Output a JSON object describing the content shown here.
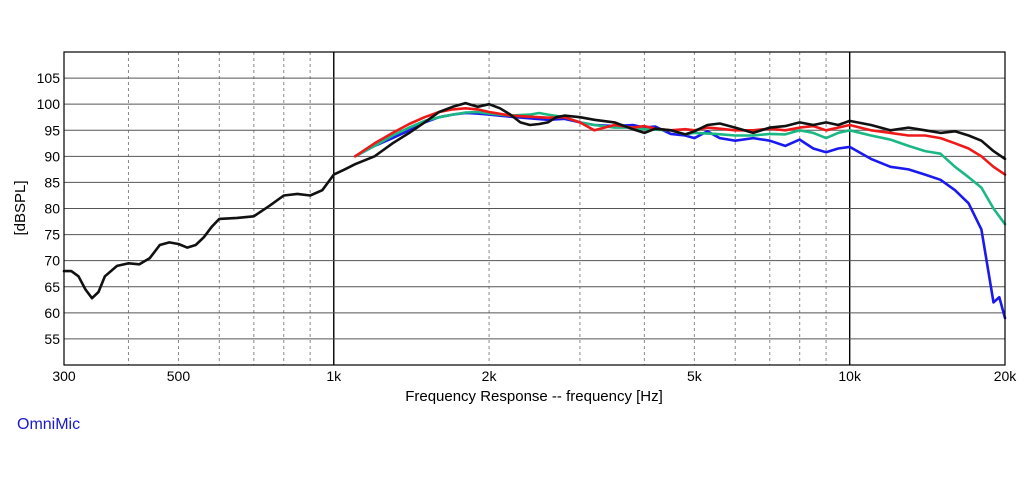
{
  "brand_label": "OmniMic",
  "chart_data": {
    "type": "line",
    "xlabel": "Frequency Response -- frequency [Hz]",
    "ylabel": "[dBSPL]",
    "x_scale": "log",
    "xlim": [
      300,
      20000
    ],
    "ylim": [
      50,
      110
    ],
    "x_ticks": [
      {
        "value": 300,
        "label": "300"
      },
      {
        "value": 500,
        "label": "500"
      },
      {
        "value": 1000,
        "label": "1k"
      },
      {
        "value": 2000,
        "label": "2k"
      },
      {
        "value": 5000,
        "label": "5k"
      },
      {
        "value": 10000,
        "label": "10k"
      },
      {
        "value": 20000,
        "label": "20k"
      }
    ],
    "y_ticks": [
      55,
      60,
      65,
      70,
      75,
      80,
      85,
      90,
      95,
      100,
      105
    ],
    "grid": true,
    "series": [
      {
        "color": "#1a1aee",
        "points": [
          [
            1100,
            90
          ],
          [
            1200,
            92
          ],
          [
            1300,
            93.5
          ],
          [
            1400,
            95
          ],
          [
            1500,
            96.5
          ],
          [
            1600,
            97.5
          ],
          [
            1700,
            98
          ],
          [
            1800,
            98.3
          ],
          [
            1900,
            98.2
          ],
          [
            2000,
            98
          ],
          [
            2200,
            97.6
          ],
          [
            2400,
            97.3
          ],
          [
            2600,
            97
          ],
          [
            2800,
            97.2
          ],
          [
            3000,
            96.5
          ],
          [
            3200,
            96
          ],
          [
            3500,
            95.8
          ],
          [
            3800,
            96
          ],
          [
            4000,
            95.5
          ],
          [
            4200,
            95.7
          ],
          [
            4500,
            94.3
          ],
          [
            4800,
            94
          ],
          [
            5000,
            93.5
          ],
          [
            5300,
            94.8
          ],
          [
            5600,
            93.5
          ],
          [
            6000,
            93
          ],
          [
            6500,
            93.5
          ],
          [
            7000,
            93
          ],
          [
            7500,
            92
          ],
          [
            8000,
            93.2
          ],
          [
            8500,
            91.5
          ],
          [
            9000,
            90.8
          ],
          [
            9500,
            91.5
          ],
          [
            10000,
            91.8
          ],
          [
            11000,
            89.5
          ],
          [
            12000,
            88
          ],
          [
            13000,
            87.5
          ],
          [
            14000,
            86.5
          ],
          [
            15000,
            85.5
          ],
          [
            16000,
            83.5
          ],
          [
            17000,
            81
          ],
          [
            18000,
            76
          ],
          [
            19000,
            62
          ],
          [
            19500,
            63
          ],
          [
            20000,
            59
          ]
        ]
      },
      {
        "color": "#1cb884",
        "points": [
          [
            1100,
            90
          ],
          [
            1200,
            92
          ],
          [
            1300,
            94
          ],
          [
            1400,
            95.5
          ],
          [
            1500,
            96.8
          ],
          [
            1600,
            97.5
          ],
          [
            1700,
            98
          ],
          [
            1800,
            98.4
          ],
          [
            1900,
            98.5
          ],
          [
            2000,
            98.2
          ],
          [
            2200,
            97.8
          ],
          [
            2400,
            98
          ],
          [
            2500,
            98.3
          ],
          [
            2600,
            98
          ],
          [
            2800,
            97.5
          ],
          [
            3000,
            96.5
          ],
          [
            3200,
            96
          ],
          [
            3500,
            95.5
          ],
          [
            3800,
            95.5
          ],
          [
            4000,
            95.2
          ],
          [
            4500,
            95
          ],
          [
            4800,
            94.2
          ],
          [
            5000,
            94.5
          ],
          [
            5500,
            94.3
          ],
          [
            6000,
            94
          ],
          [
            6500,
            94
          ],
          [
            7000,
            94.3
          ],
          [
            7500,
            94.2
          ],
          [
            8000,
            95
          ],
          [
            8500,
            94.5
          ],
          [
            9000,
            93.5
          ],
          [
            9500,
            94.5
          ],
          [
            10000,
            95
          ],
          [
            11000,
            94
          ],
          [
            12000,
            93.2
          ],
          [
            13000,
            92
          ],
          [
            14000,
            91
          ],
          [
            15000,
            90.5
          ],
          [
            16000,
            88
          ],
          [
            17000,
            86
          ],
          [
            18000,
            84
          ],
          [
            19000,
            80
          ],
          [
            20000,
            77
          ]
        ]
      },
      {
        "color": "#ee1a1a",
        "points": [
          [
            1100,
            90
          ],
          [
            1200,
            92.5
          ],
          [
            1300,
            94.5
          ],
          [
            1400,
            96.2
          ],
          [
            1500,
            97.5
          ],
          [
            1600,
            98.5
          ],
          [
            1700,
            99
          ],
          [
            1800,
            99.2
          ],
          [
            1900,
            99
          ],
          [
            2000,
            98.5
          ],
          [
            2200,
            97.8
          ],
          [
            2400,
            97.6
          ],
          [
            2600,
            97.4
          ],
          [
            2800,
            97.5
          ],
          [
            3000,
            96.5
          ],
          [
            3200,
            95
          ],
          [
            3500,
            96
          ],
          [
            3800,
            95.5
          ],
          [
            4000,
            95.8
          ],
          [
            4200,
            95.3
          ],
          [
            4500,
            95
          ],
          [
            4800,
            95.2
          ],
          [
            5000,
            95
          ],
          [
            5300,
            95.5
          ],
          [
            5600,
            95.3
          ],
          [
            6000,
            95
          ],
          [
            6500,
            95
          ],
          [
            7000,
            95.3
          ],
          [
            7500,
            95
          ],
          [
            8000,
            95.5
          ],
          [
            8500,
            95.8
          ],
          [
            9000,
            95
          ],
          [
            9500,
            95.5
          ],
          [
            10000,
            96
          ],
          [
            11000,
            95
          ],
          [
            12000,
            94.5
          ],
          [
            13000,
            94
          ],
          [
            14000,
            94
          ],
          [
            15000,
            93.5
          ],
          [
            16000,
            92.5
          ],
          [
            17000,
            91.5
          ],
          [
            18000,
            90
          ],
          [
            19000,
            88
          ],
          [
            20000,
            86.5
          ]
        ]
      },
      {
        "color": "#111111",
        "points": [
          [
            300,
            68
          ],
          [
            310,
            68
          ],
          [
            320,
            67
          ],
          [
            330,
            64.5
          ],
          [
            340,
            62.8
          ],
          [
            350,
            64
          ],
          [
            360,
            67
          ],
          [
            380,
            69
          ],
          [
            400,
            69.5
          ],
          [
            420,
            69.3
          ],
          [
            440,
            70.5
          ],
          [
            460,
            73
          ],
          [
            480,
            73.5
          ],
          [
            500,
            73.2
          ],
          [
            520,
            72.5
          ],
          [
            540,
            73
          ],
          [
            560,
            74.5
          ],
          [
            580,
            76.5
          ],
          [
            600,
            78
          ],
          [
            650,
            78.2
          ],
          [
            700,
            78.5
          ],
          [
            750,
            80.5
          ],
          [
            800,
            82.5
          ],
          [
            850,
            82.8
          ],
          [
            900,
            82.5
          ],
          [
            950,
            83.5
          ],
          [
            1000,
            86.5
          ],
          [
            1050,
            87.5
          ],
          [
            1100,
            88.5
          ],
          [
            1200,
            90
          ],
          [
            1300,
            92.5
          ],
          [
            1400,
            94.5
          ],
          [
            1500,
            96.5
          ],
          [
            1600,
            98.5
          ],
          [
            1700,
            99.5
          ],
          [
            1800,
            100.2
          ],
          [
            1900,
            99.5
          ],
          [
            2000,
            100
          ],
          [
            2100,
            99.2
          ],
          [
            2200,
            98
          ],
          [
            2300,
            96.5
          ],
          [
            2400,
            96
          ],
          [
            2500,
            96.2
          ],
          [
            2600,
            96.5
          ],
          [
            2700,
            97.5
          ],
          [
            2800,
            97.8
          ],
          [
            3000,
            97.5
          ],
          [
            3200,
            97
          ],
          [
            3500,
            96.5
          ],
          [
            3800,
            95.2
          ],
          [
            4000,
            94.5
          ],
          [
            4200,
            95.3
          ],
          [
            4500,
            95
          ],
          [
            4800,
            94.2
          ],
          [
            5000,
            94.8
          ],
          [
            5300,
            96
          ],
          [
            5600,
            96.3
          ],
          [
            6000,
            95.5
          ],
          [
            6500,
            94.5
          ],
          [
            7000,
            95.5
          ],
          [
            7500,
            95.8
          ],
          [
            8000,
            96.5
          ],
          [
            8500,
            96
          ],
          [
            9000,
            96.5
          ],
          [
            9500,
            96
          ],
          [
            10000,
            96.8
          ],
          [
            11000,
            96
          ],
          [
            12000,
            95
          ],
          [
            13000,
            95.5
          ],
          [
            14000,
            95
          ],
          [
            15000,
            94.5
          ],
          [
            16000,
            94.8
          ],
          [
            17000,
            94
          ],
          [
            18000,
            93
          ],
          [
            19000,
            91
          ],
          [
            20000,
            89.5
          ]
        ]
      }
    ]
  }
}
